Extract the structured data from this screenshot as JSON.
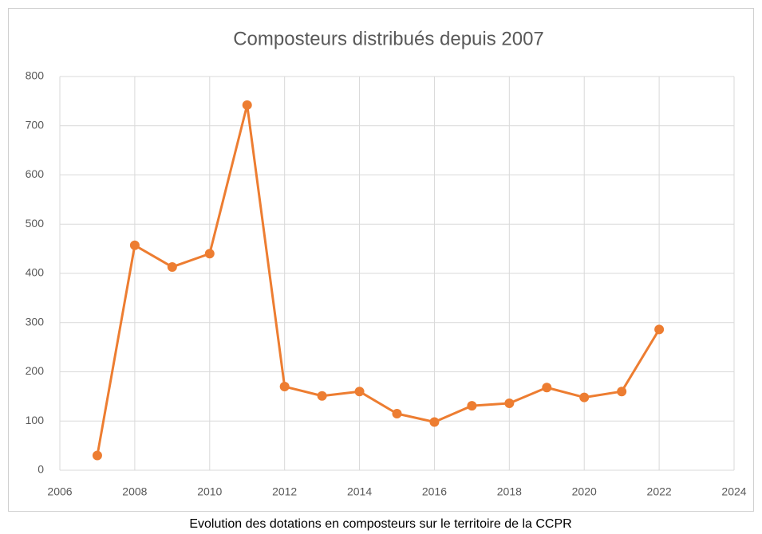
{
  "chart_data": {
    "type": "line",
    "title": "Composteurs distribués depuis 2007",
    "x": [
      2007,
      2008,
      2009,
      2010,
      2011,
      2012,
      2013,
      2014,
      2015,
      2016,
      2017,
      2018,
      2019,
      2020,
      2021,
      2022
    ],
    "series": [
      {
        "name": "Composteurs",
        "color": "#ed7d31",
        "values": [
          30,
          457,
          413,
          440,
          742,
          170,
          151,
          160,
          115,
          98,
          131,
          136,
          168,
          148,
          160,
          286
        ]
      }
    ],
    "xlim": [
      2006,
      2024
    ],
    "xticks": [
      2006,
      2008,
      2010,
      2012,
      2014,
      2016,
      2018,
      2020,
      2022,
      2024
    ],
    "ylim": [
      0,
      800
    ],
    "yticks": [
      0,
      100,
      200,
      300,
      400,
      500,
      600,
      700,
      800
    ],
    "grid": true
  },
  "caption": "Evolution des dotations en composteurs sur le territoire de la CCPR"
}
